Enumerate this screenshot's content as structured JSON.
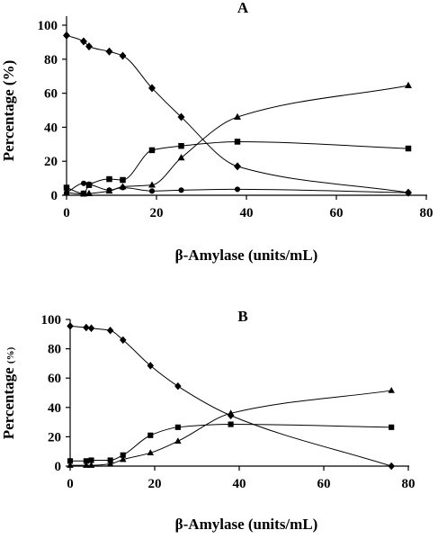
{
  "chart_data": [
    {
      "type": "line",
      "panel": "A",
      "xlabel": "β-Amylase (units/mL)",
      "ylabel": "Percentage (%)",
      "ylabel_main": "Percentage",
      "ylabel_unit": "(%)",
      "xlim": [
        0,
        80
      ],
      "ylim": [
        0,
        100
      ],
      "xticks": [
        "0",
        "20",
        "40",
        "60",
        "80"
      ],
      "yticks": [
        "0",
        "20",
        "40",
        "60",
        "80",
        "100"
      ],
      "grid": false,
      "series": [
        {
          "marker": "diamond",
          "x": [
            0,
            3.8,
            5,
            9.5,
            12.5,
            19,
            25.5,
            38,
            76
          ],
          "y": [
            94,
            90.5,
            87.5,
            84.5,
            82,
            63,
            46,
            17,
            1.5
          ]
        },
        {
          "marker": "square",
          "x": [
            0,
            3.8,
            5,
            9.5,
            12.5,
            19,
            25.5,
            38,
            76
          ],
          "y": [
            4.5,
            1,
            6,
            9.5,
            9,
            26.5,
            29,
            31.5,
            27.5
          ]
        },
        {
          "marker": "triangle",
          "x": [
            0,
            3.8,
            5,
            9.5,
            12.5,
            19,
            25.5,
            38,
            76
          ],
          "y": [
            1.5,
            0.8,
            1,
            2.5,
            5,
            6,
            22,
            46,
            64.5
          ]
        },
        {
          "marker": "circle",
          "x": [
            0,
            3.8,
            5,
            9.5,
            12.5,
            19,
            25.5,
            38,
            76
          ],
          "y": [
            1.5,
            7,
            6.5,
            3,
            4.5,
            2.5,
            3,
            3.5,
            1.5
          ]
        }
      ]
    },
    {
      "type": "line",
      "panel": "B",
      "xlabel": "β-Amylase (units/mL)",
      "ylabel": "Percentage (%)",
      "ylabel_main": "Percentage",
      "ylabel_unit": "(%)",
      "xlim": [
        0,
        80
      ],
      "ylim": [
        0,
        100
      ],
      "xticks": [
        "0",
        "20",
        "40",
        "60",
        "80"
      ],
      "yticks": [
        "0",
        "20",
        "40",
        "60",
        "80",
        "100"
      ],
      "grid": false,
      "series": [
        {
          "marker": "diamond",
          "x": [
            0,
            3.8,
            5,
            9.5,
            12.5,
            19,
            25.5,
            38,
            76
          ],
          "y": [
            95.5,
            94.5,
            94,
            92.5,
            86,
            68.5,
            54.5,
            34.5,
            0
          ]
        },
        {
          "marker": "square",
          "x": [
            0,
            3.8,
            5,
            9.5,
            12.5,
            19,
            25.5,
            38,
            76
          ],
          "y": [
            3.5,
            3.5,
            4,
            4,
            7.5,
            21,
            26.5,
            28.5,
            26.5
          ]
        },
        {
          "marker": "triangle",
          "x": [
            0,
            3.8,
            5,
            9.5,
            12.5,
            19,
            25.5,
            38,
            76
          ],
          "y": [
            0.5,
            0.5,
            0.5,
            1.5,
            4.5,
            9,
            17,
            36,
            51.5
          ]
        }
      ]
    }
  ]
}
